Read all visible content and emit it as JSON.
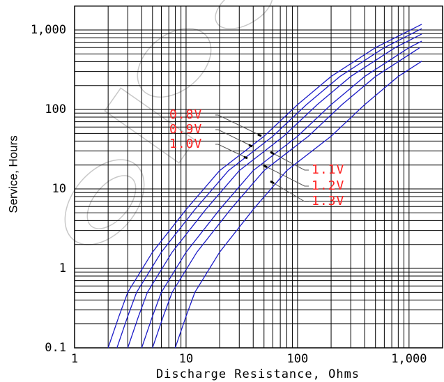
{
  "chart_data": {
    "type": "line",
    "x_label": "Discharge Resistance, Ohms",
    "y_label": "Service, Hours",
    "xscale": "log",
    "yscale": "log",
    "grid": true,
    "minor_grid": true,
    "xlim": [
      1,
      2000
    ],
    "ylim": [
      0.1,
      2000
    ],
    "xticks": [
      1,
      10,
      100,
      {
        "value": 1000,
        "label": "1,000"
      }
    ],
    "yticks": [
      0.1,
      1,
      10,
      100,
      {
        "value": 1000,
        "label": "1,000"
      }
    ],
    "label_color": "#ff2020",
    "series": [
      {
        "name": "0.8V",
        "color": "#1c1cc8",
        "x": [
          2,
          2.5,
          3,
          5,
          10,
          20,
          50,
          100,
          200,
          500,
          1300
        ],
        "values": [
          0.1,
          0.25,
          0.5,
          1.6,
          5.5,
          17,
          46,
          115,
          260,
          600,
          1180
        ]
      },
      {
        "name": "0.9V",
        "color": "#1c1cc8",
        "x": [
          2.4,
          3,
          3.6,
          6,
          12,
          24,
          60,
          120,
          240,
          600,
          1300
        ],
        "values": [
          0.1,
          0.25,
          0.5,
          1.6,
          5.5,
          17,
          46,
          115,
          260,
          600,
          1040
        ]
      },
      {
        "name": "1.0V",
        "color": "#1c1cc8",
        "x": [
          3,
          3.75,
          4.5,
          7.5,
          15,
          30,
          75,
          150,
          300,
          750,
          1300
        ],
        "values": [
          0.1,
          0.25,
          0.5,
          1.6,
          5.5,
          17,
          46,
          115,
          260,
          600,
          890
        ]
      },
      {
        "name": "1.1V",
        "color": "#1c1cc8",
        "x": [
          4,
          5,
          6,
          10,
          20,
          40,
          100,
          200,
          400,
          1000,
          1300
        ],
        "values": [
          0.1,
          0.25,
          0.5,
          1.6,
          5.5,
          17,
          46,
          115,
          260,
          600,
          722
        ]
      },
      {
        "name": "1.2V",
        "color": "#1c1cc8",
        "x": [
          5,
          6.25,
          7.5,
          12.5,
          25,
          50,
          125,
          250,
          500,
          1250
        ],
        "values": [
          0.1,
          0.25,
          0.5,
          1.6,
          5.5,
          17,
          46,
          115,
          260,
          600
        ]
      },
      {
        "name": "1.3V",
        "color": "#1c1cc8",
        "x": [
          8,
          10,
          12,
          20,
          40,
          80,
          200,
          400,
          800,
          1300
        ],
        "values": [
          0.1,
          0.25,
          0.5,
          1.6,
          5.5,
          17,
          46,
          115,
          260,
          405
        ]
      }
    ]
  }
}
